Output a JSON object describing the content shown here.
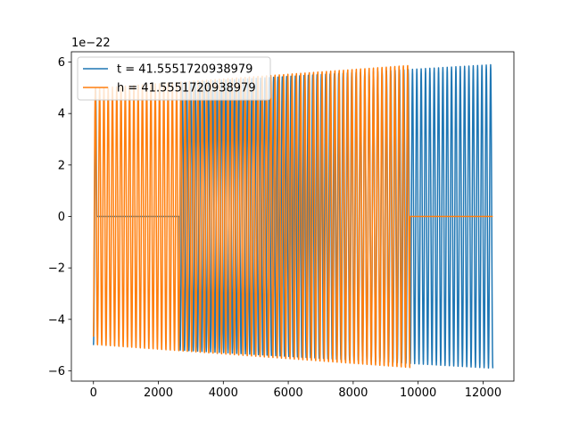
{
  "chart_data": {
    "type": "line",
    "title": "",
    "xlabel": "",
    "ylabel": "",
    "y_offset_label": "1e−22",
    "xlim": [
      -680,
      12950
    ],
    "ylim": [
      -6.4,
      6.4
    ],
    "x_ticks": [
      0,
      2000,
      4000,
      6000,
      8000,
      10000,
      12000
    ],
    "x_tick_labels": [
      "0",
      "2000",
      "4000",
      "6000",
      "8000",
      "10000",
      "12000"
    ],
    "y_ticks": [
      -6,
      -4,
      -2,
      0,
      2,
      4,
      6
    ],
    "y_tick_labels": [
      "−6",
      "−4",
      "−2",
      "0",
      "2",
      "4",
      "6"
    ],
    "grid": false,
    "legend_position": "upper-left",
    "series": [
      {
        "name": "t = 41.5551720938979",
        "color": "#1f77b4",
        "x_start": 0,
        "x_end": 12300,
        "cycles": 92,
        "amplitude_start": 5.0,
        "amplitude_end": 5.9,
        "zero_gap": [
          100,
          2650
        ]
      },
      {
        "name": "h = 41.5551720938979",
        "color": "#ff7f0e",
        "x_start": 0,
        "x_end": 9750,
        "cycles": 74,
        "amplitude_start": 5.0,
        "amplitude_end": 5.9,
        "zero_gap": [
          9750,
          12300
        ]
      }
    ]
  }
}
